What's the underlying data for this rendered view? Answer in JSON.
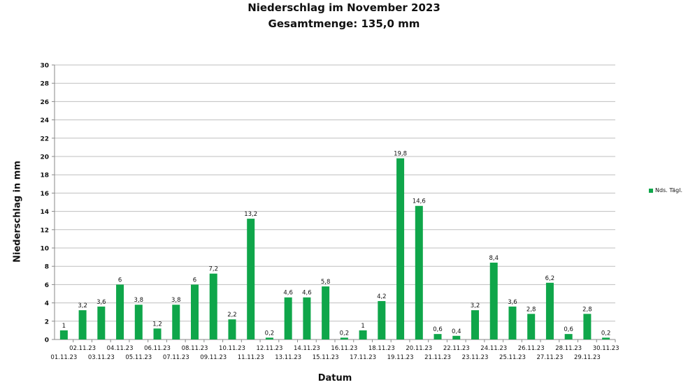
{
  "chart_data": {
    "type": "bar",
    "title": "Niederschlag im November 2023",
    "subtitle": "Gesamtmenge: 135,0 mm",
    "xlabel": "Datum",
    "ylabel": "Niederschlag in mm",
    "ylim": [
      0,
      30
    ],
    "yticks": [
      "0",
      "2",
      "4",
      "6",
      "8",
      "10",
      "12",
      "14",
      "16",
      "18",
      "20",
      "22",
      "24",
      "26",
      "28",
      "30"
    ],
    "grid": true,
    "legend_position": "right",
    "series": [
      {
        "name": "Nds. Tägl.",
        "color": "#0fa64a",
        "values": [
          1,
          3.2,
          3.6,
          6,
          3.8,
          1.2,
          3.8,
          6,
          7.2,
          2.2,
          13.2,
          0.2,
          4.6,
          4.6,
          5.8,
          0.2,
          1,
          4.2,
          19.8,
          14.6,
          0.6,
          0.4,
          3.2,
          8.4,
          3.6,
          2.8,
          6.2,
          0.6,
          2.8,
          0.2
        ],
        "labels": [
          "1",
          "3,2",
          "3,6",
          "6",
          "3,8",
          "1,2",
          "3,8",
          "6",
          "7,2",
          "2,2",
          "13,2",
          "0,2",
          "4,6",
          "4,6",
          "5,8",
          "0,2",
          "1",
          "4,2",
          "19,8",
          "14,6",
          "0,6",
          "0,4",
          "3,2",
          "8,4",
          "3,6",
          "2,8",
          "6,2",
          "0,6",
          "2,8",
          "0,2"
        ]
      }
    ],
    "categories": [
      "01.11.23",
      "02.11.23",
      "03.11.23",
      "04.11.23",
      "05.11.23",
      "06.11.23",
      "07.11.23",
      "08.11.23",
      "09.11.23",
      "10.11.23",
      "11.11.23",
      "12.11.23",
      "13.11.23",
      "14.11.23",
      "15.11.23",
      "16.11.23",
      "17.11.23",
      "18.11.23",
      "19.11.23",
      "20.11.23",
      "21.11.23",
      "22.11.23",
      "23.11.23",
      "24.11.23",
      "25.11.23",
      "26.11.23",
      "27.11.23",
      "28.11.23",
      "29.11.23",
      "30.11.23"
    ]
  }
}
